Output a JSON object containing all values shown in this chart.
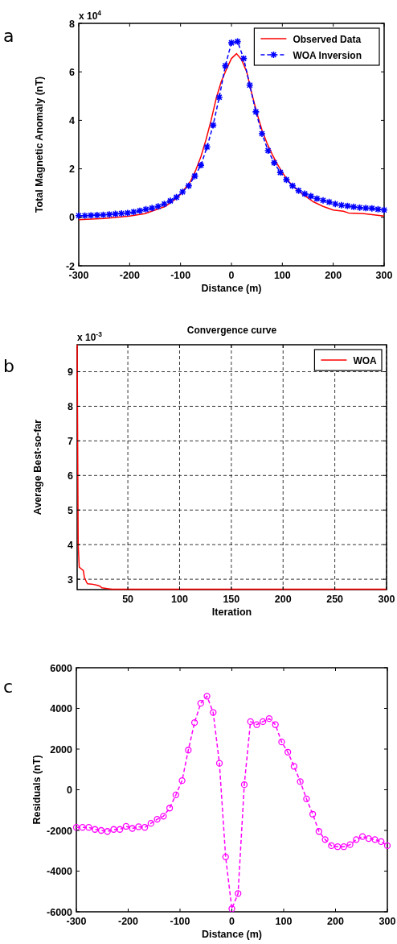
{
  "chart_data": [
    {
      "type": "line",
      "xlabel": "Distance (m)",
      "ylabel": "Total Magnetic Anomaly (nT)",
      "annotations": [
        "a",
        "x 10$^{4}$"
      ],
      "xlim": [
        -300,
        300
      ],
      "xticks": [
        -300,
        -200,
        -100,
        0,
        100,
        200,
        300
      ],
      "ylim": [
        -2,
        8
      ],
      "yticks": [
        -2,
        0,
        2,
        4,
        6,
        8
      ],
      "legend": "top right",
      "series": [
        {
          "name": "Observed Data",
          "color": "#ff0000",
          "line_style": "solid",
          "marker": "none",
          "x": [
            -300,
            -250,
            -200,
            -170,
            -150,
            -130,
            -110,
            -100,
            -80,
            -70,
            -60,
            -50,
            -40,
            -30,
            -20,
            -10,
            0,
            10,
            20,
            30,
            40,
            50,
            60,
            70,
            80,
            90,
            100,
            110,
            120,
            140,
            160,
            180,
            200,
            220,
            230,
            260,
            300
          ],
          "values": [
            -0.1,
            -0.05,
            0.05,
            0.15,
            0.3,
            0.45,
            0.75,
            0.95,
            1.5,
            1.95,
            2.5,
            3.2,
            4.0,
            4.9,
            5.6,
            6.1,
            6.55,
            6.75,
            6.5,
            6.0,
            5.1,
            4.3,
            3.6,
            3.05,
            2.6,
            2.2,
            1.85,
            1.55,
            1.3,
            0.95,
            0.65,
            0.45,
            0.3,
            0.25,
            0.18,
            0.15,
            0.05
          ]
        },
        {
          "name": "WOA Inversion",
          "color": "#0000ff",
          "line_style": "dashed",
          "marker": "cross",
          "x": [
            -300,
            -288,
            -276,
            -264,
            -252,
            -240,
            -228,
            -216,
            -204,
            -192,
            -180,
            -168,
            -156,
            -144,
            -132,
            -120,
            -108,
            -96,
            -84,
            -72,
            -60,
            -48,
            -36,
            -24,
            -12,
            0,
            12,
            24,
            36,
            48,
            60,
            72,
            84,
            96,
            108,
            120,
            132,
            144,
            156,
            168,
            180,
            192,
            204,
            216,
            228,
            240,
            252,
            264,
            276,
            288,
            300
          ],
          "values": [
            0.07,
            0.07,
            0.08,
            0.09,
            0.1,
            0.12,
            0.14,
            0.16,
            0.18,
            0.22,
            0.27,
            0.33,
            0.38,
            0.45,
            0.55,
            0.68,
            0.83,
            1.05,
            1.3,
            1.7,
            2.15,
            2.9,
            3.8,
            4.95,
            6.25,
            7.2,
            7.25,
            6.55,
            5.45,
            4.35,
            3.45,
            2.75,
            2.25,
            1.85,
            1.55,
            1.3,
            1.1,
            0.97,
            0.87,
            0.77,
            0.7,
            0.63,
            0.55,
            0.5,
            0.47,
            0.43,
            0.4,
            0.38,
            0.37,
            0.33,
            0.3
          ]
        }
      ]
    },
    {
      "type": "line",
      "title": "Convergence curve",
      "xlabel": "Iteration",
      "ylabel": "Average Best-so-far",
      "annotations": [
        "b",
        "x 10$^{-3}$"
      ],
      "xlim": [
        1,
        300
      ],
      "xticks": [
        50,
        100,
        150,
        200,
        250,
        300
      ],
      "ylim": [
        2.7,
        9.78
      ],
      "yticks": [
        3,
        4,
        5,
        6,
        7,
        8,
        9
      ],
      "grid": true,
      "legend": "top right",
      "series": [
        {
          "name": "WOA",
          "color": "#ff0000",
          "line_style": "solid",
          "marker": "none",
          "x": [
            1,
            2,
            3,
            5,
            7,
            8,
            10,
            11,
            15,
            20,
            23,
            25,
            30,
            33,
            35,
            300
          ],
          "values": [
            9.78,
            4.0,
            3.35,
            3.3,
            3.25,
            3.05,
            2.92,
            2.87,
            2.86,
            2.83,
            2.8,
            2.75,
            2.73,
            2.72,
            2.71,
            2.71
          ]
        }
      ]
    },
    {
      "type": "line",
      "xlabel": "Distance (m)",
      "ylabel": "Residuals (nT)",
      "annotations": [
        "c"
      ],
      "xlim": [
        -300,
        300
      ],
      "xticks": [
        -300,
        -200,
        -100,
        0,
        100,
        200,
        300
      ],
      "ylim": [
        -6000,
        6000
      ],
      "yticks": [
        -6000,
        -4000,
        -2000,
        0,
        2000,
        4000,
        6000
      ],
      "series": [
        {
          "color": "#ff00ff",
          "line_style": "dashed",
          "marker": "circle",
          "x": [
            -300,
            -288,
            -276,
            -264,
            -252,
            -240,
            -228,
            -216,
            -204,
            -192,
            -180,
            -168,
            -156,
            -144,
            -132,
            -120,
            -108,
            -96,
            -84,
            -72,
            -60,
            -48,
            -36,
            -24,
            -12,
            0,
            12,
            24,
            36,
            48,
            60,
            72,
            84,
            96,
            108,
            120,
            132,
            144,
            156,
            168,
            180,
            192,
            204,
            216,
            228,
            240,
            252,
            264,
            276,
            288,
            300
          ],
          "values": [
            -1850,
            -1850,
            -1850,
            -1950,
            -2000,
            -2050,
            -1950,
            -1950,
            -1800,
            -1900,
            -1820,
            -1850,
            -1650,
            -1450,
            -1300,
            -900,
            -250,
            450,
            1950,
            3300,
            4250,
            4600,
            3800,
            1300,
            -3300,
            -5850,
            -5100,
            250,
            3350,
            3200,
            3350,
            3500,
            3200,
            2350,
            1850,
            1150,
            400,
            -450,
            -1200,
            -2050,
            -2450,
            -2750,
            -2800,
            -2800,
            -2700,
            -2450,
            -2300,
            -2400,
            -2450,
            -2550,
            -2750
          ]
        }
      ]
    }
  ]
}
